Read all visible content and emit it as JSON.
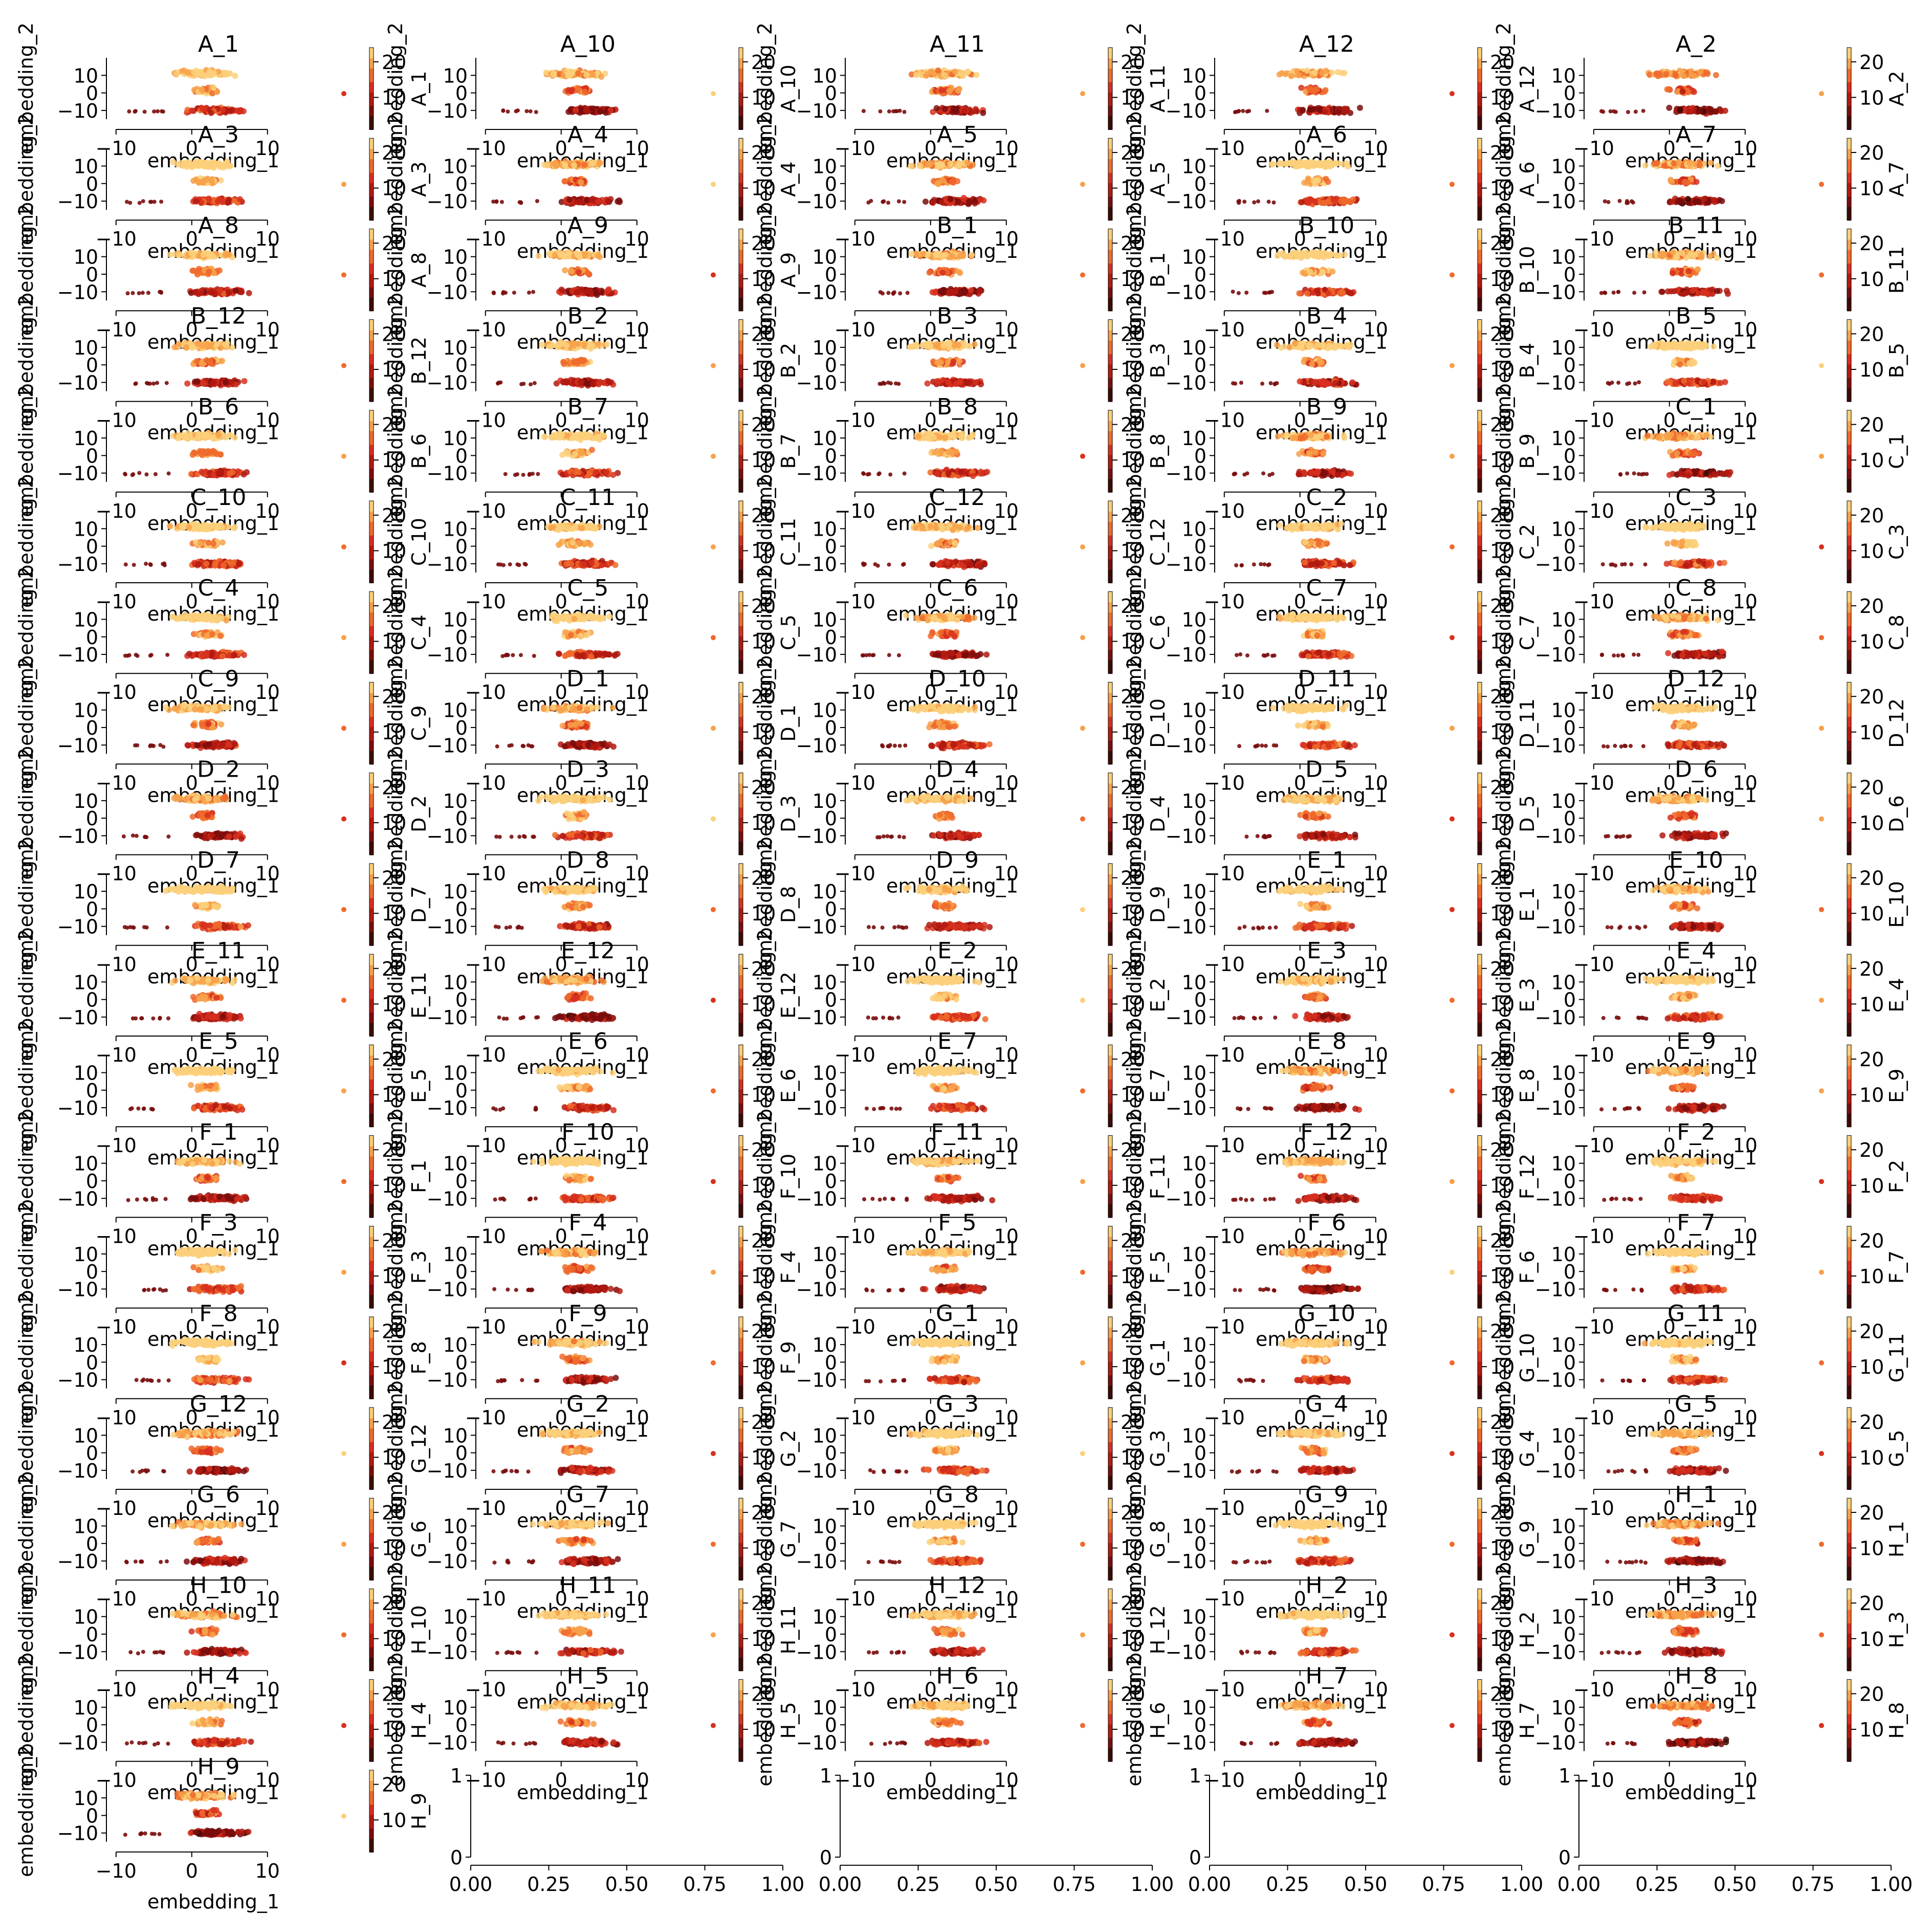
{
  "chart_data": {
    "type": "scatter",
    "layout": {
      "columns": 5,
      "rows": 20,
      "order": "row-major"
    },
    "xlabel": "embedding_1",
    "ylabel": "embedding_2",
    "xlim": [
      -11,
      14
    ],
    "ylim": [
      -15,
      20
    ],
    "x_ticks": [
      -10,
      0,
      10
    ],
    "y_ticks": [
      -10,
      0,
      10
    ],
    "colorbar_ticks": [
      10,
      20
    ],
    "colorbar_range": [
      1,
      24
    ],
    "colormap": [
      "#3d0a05",
      "#7a0d0d",
      "#b11a10",
      "#d7301f",
      "#ef6a2c",
      "#f7a14a",
      "#fcd07a",
      "#fef0b4"
    ],
    "panels": [
      "A_1",
      "A_10",
      "A_11",
      "A_12",
      "A_2",
      "A_3",
      "A_4",
      "A_5",
      "A_6",
      "A_7",
      "A_8",
      "A_9",
      "B_1",
      "B_10",
      "B_11",
      "B_12",
      "B_2",
      "B_3",
      "B_4",
      "B_5",
      "B_6",
      "B_7",
      "B_8",
      "B_9",
      "C_1",
      "C_10",
      "C_11",
      "C_12",
      "C_2",
      "C_3",
      "C_4",
      "C_5",
      "C_6",
      "C_7",
      "C_8",
      "C_9",
      "D_1",
      "D_10",
      "D_11",
      "D_12",
      "D_2",
      "D_3",
      "D_4",
      "D_5",
      "D_6",
      "D_7",
      "D_8",
      "D_9",
      "E_1",
      "E_10",
      "E_11",
      "E_12",
      "E_2",
      "E_3",
      "E_4",
      "E_5",
      "E_6",
      "E_7",
      "E_8",
      "E_9",
      "F_1",
      "F_10",
      "F_11",
      "F_12",
      "F_2",
      "F_3",
      "F_4",
      "F_5",
      "F_6",
      "F_7",
      "F_8",
      "F_9",
      "G_1",
      "G_10",
      "G_11",
      "G_12",
      "G_2",
      "G_3",
      "G_4",
      "G_5",
      "G_6",
      "G_7",
      "G_8",
      "G_9",
      "H_1",
      "H_10",
      "H_11",
      "H_12",
      "H_2",
      "H_3",
      "H_4",
      "H_5",
      "H_6",
      "H_7",
      "H_8",
      "H_9"
    ],
    "empty_panels": {
      "count": 4,
      "xlim": [
        0,
        1
      ],
      "ylim": [
        0,
        1
      ],
      "x_ticks": [
        "0.00",
        "0.25",
        "0.50",
        "0.75",
        "1.00"
      ],
      "y_ticks": [
        "0",
        "1"
      ],
      "xlabel": "embedding_1"
    }
  }
}
